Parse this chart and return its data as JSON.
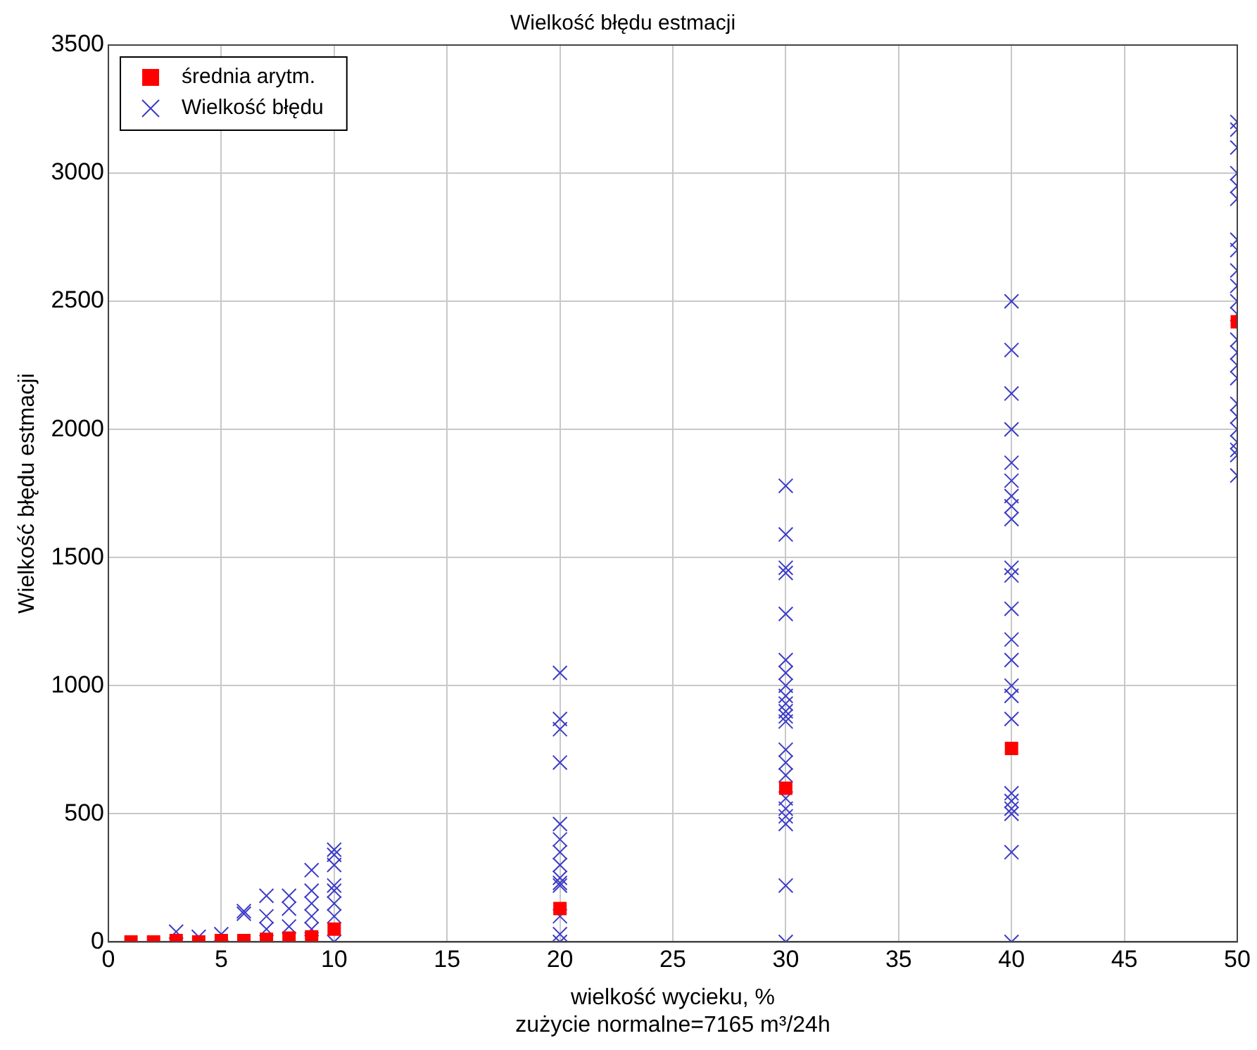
{
  "chart_data": {
    "type": "scatter",
    "title": "Wielkość błędu estmacji",
    "xlabel": "wielkość wycieku, %",
    "ylabel": "Wielkość błędu estmacji",
    "annotations": [
      "zużycie normalne=7165 m³/24h"
    ],
    "xlim": [
      0,
      50
    ],
    "xticks": [
      0,
      5,
      10,
      15,
      20,
      25,
      30,
      35,
      40,
      45,
      50
    ],
    "ylim": [
      0,
      3500
    ],
    "yticks": [
      0,
      500,
      1000,
      1500,
      2000,
      2500,
      3000,
      3500
    ],
    "grid": true,
    "legend": "top left",
    "series": [
      {
        "name": "średnia arytm.",
        "color": "#ff0000",
        "marker": "square",
        "x": [
          1,
          2,
          3,
          4,
          5,
          6,
          7,
          8,
          9,
          10,
          20,
          30,
          40,
          50
        ],
        "values": [
          0,
          0,
          5,
          0,
          5,
          5,
          10,
          15,
          20,
          50,
          130,
          600,
          755,
          2420
        ]
      },
      {
        "name": "Wielkość błędu",
        "color": "#3c3cc8",
        "marker": "cross",
        "x": [
          3,
          4,
          5,
          6,
          6,
          7,
          7,
          7,
          8,
          8,
          8,
          9,
          9,
          9,
          9,
          9,
          9,
          10,
          10,
          10,
          10,
          10,
          10,
          10,
          10,
          20,
          20,
          20,
          20,
          20,
          20,
          20,
          20,
          20,
          20,
          20,
          20,
          20,
          20,
          30,
          30,
          30,
          30,
          30,
          30,
          30,
          30,
          30,
          30,
          30,
          30,
          30,
          30,
          30,
          30,
          30,
          30,
          30,
          30,
          30,
          30,
          40,
          40,
          40,
          40,
          40,
          40,
          40,
          40,
          40,
          40,
          40,
          40,
          40,
          40,
          40,
          40,
          40,
          40,
          40,
          40,
          40,
          40,
          40,
          50,
          50,
          50,
          50,
          50,
          50,
          50,
          50,
          50,
          50,
          50,
          50,
          50,
          50,
          50,
          50,
          50,
          50,
          50,
          50,
          50,
          50,
          50
        ],
        "values": [
          40,
          20,
          30,
          120,
          110,
          180,
          100,
          50,
          180,
          130,
          60,
          280,
          200,
          150,
          100,
          50,
          10,
          360,
          340,
          300,
          220,
          200,
          150,
          100,
          0,
          1050,
          870,
          830,
          700,
          460,
          400,
          350,
          300,
          250,
          230,
          220,
          100,
          30,
          0,
          1780,
          1590,
          1460,
          1440,
          1280,
          1100,
          1050,
          1000,
          960,
          930,
          900,
          880,
          860,
          750,
          700,
          650,
          560,
          520,
          490,
          460,
          220,
          0,
          2500,
          2310,
          2140,
          2000,
          1870,
          1800,
          1740,
          1700,
          1650,
          1460,
          1430,
          1300,
          1180,
          1100,
          1000,
          960,
          870,
          580,
          550,
          520,
          500,
          350,
          0,
          3200,
          3170,
          3100,
          3000,
          2950,
          2900,
          2740,
          2700,
          2620,
          2560,
          2500,
          2450,
          2350,
          2300,
          2250,
          2200,
          2100,
          2050,
          2000,
          1950,
          1920,
          1900,
          1820
        ]
      }
    ]
  }
}
